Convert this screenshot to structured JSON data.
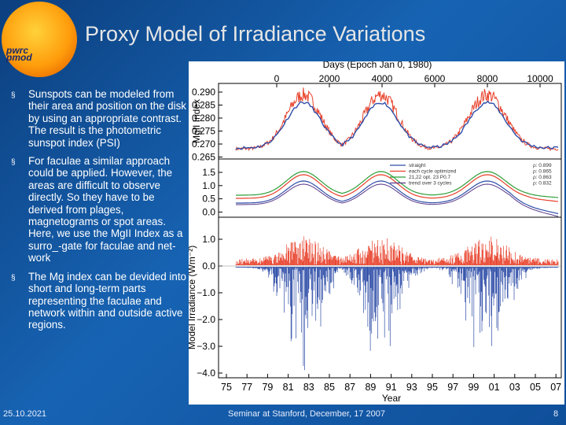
{
  "slide": {
    "title": "Proxy Model of Irradiance Variations",
    "logo_line1": "pwrc",
    "logo_line2": "pmod",
    "bullets": [
      "Sunspots can be modeled from their area and position on the disk by using an appropriate contrast. The result is the photometric sunspot index (PSI)",
      "For faculae a similar approach could be applied. However, the areas are difficult to observe directly. So they have to be derived from plages, magnetograms or spot areas. Here, we use the MgII Index  as a surro_-gate for faculae and net-work",
      "The Mg index can be devided into short and long-term parts representing the faculae and network within and outside active regions."
    ],
    "bullet_marker": "§",
    "footer_date": "25.10.2021",
    "footer_center": "Seminar at Stanford, December, 17 2007",
    "page_number": "8"
  },
  "colors": {
    "background": "#1763b3",
    "red": "#e8412b",
    "blue": "#2f4ea8",
    "green": "#2f9f3a",
    "purple": "#5a3a8a"
  },
  "chart_data": {
    "type": "line",
    "top_axis_label": "Days (Epoch Jan 0, 1980)",
    "top_ticks": [
      "0",
      "2000",
      "4000",
      "6000",
      "8000",
      "10000"
    ],
    "xlabel": "Year",
    "x_ticks": [
      "75",
      "77",
      "79",
      "81",
      "83",
      "85",
      "87",
      "89",
      "91",
      "93",
      "95",
      "97",
      "99",
      "01",
      "03",
      "05",
      "07"
    ],
    "panel_mg": {
      "ylabel": "MgII Index",
      "y_ticks": [
        "0.290",
        "0.285",
        "0.280",
        "0.275",
        "0.270",
        "0.265"
      ],
      "ylim": [
        0.262,
        0.292
      ]
    },
    "ylabel_irradiance": "Model Irradiance (Wm⁻²)",
    "panel_long": {
      "y_ticks": [
        "1.5",
        "1.0",
        "0.5",
        "0.0"
      ],
      "ylim": [
        -0.3,
        1.8
      ],
      "legend": [
        {
          "label": "straight",
          "value": "ρ: 0.899",
          "color": "#2f4ea8"
        },
        {
          "label": "each cycle optimized",
          "value": "ρ: 0.865",
          "color": "#e8412b"
        },
        {
          "label": "21,22 opt. 23 P0.7",
          "value": "ρ: 0.863",
          "color": "#2f9f3a"
        },
        {
          "label": "trend over 3 cycles",
          "value": "ρ: 0.832",
          "color": "#5a3a8a"
        }
      ]
    },
    "panel_short": {
      "y_ticks": [
        "1.0",
        "0.0",
        "−1.0",
        "−2.0",
        "−3.0",
        "−4.0"
      ],
      "ylim": [
        -4.4,
        1.6
      ]
    }
  }
}
